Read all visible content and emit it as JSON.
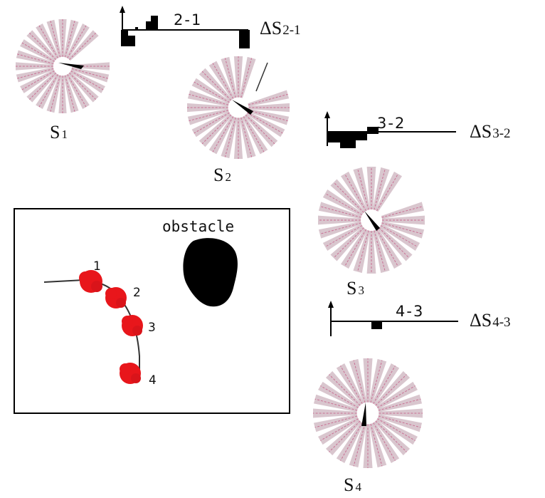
{
  "scans": [
    {
      "label": "S",
      "sub": "1",
      "heading": "right",
      "gap": "right"
    },
    {
      "label": "S",
      "sub": "2",
      "heading": "down-right",
      "gap": "top-right"
    },
    {
      "label": "S",
      "sub": "3",
      "heading": "down-right",
      "gap": "top-right"
    },
    {
      "label": "S",
      "sub": "4",
      "heading": "down",
      "gap": "none"
    }
  ],
  "differences": [
    {
      "pair_label": "2-1",
      "delta": "ΔS",
      "sub": "2-1"
    },
    {
      "pair_label": "3-2",
      "delta": "ΔS",
      "sub": "3-2"
    },
    {
      "pair_label": "4-3",
      "delta": "ΔS",
      "sub": "4-3"
    }
  ],
  "map": {
    "obstacle_label": "obstacle",
    "positions": [
      "1",
      "2",
      "3",
      "4"
    ]
  },
  "colors": {
    "rays": "#b998a6",
    "ray_accent": "#c24a7a",
    "robot": "#e8161b",
    "ink": "#000000"
  }
}
